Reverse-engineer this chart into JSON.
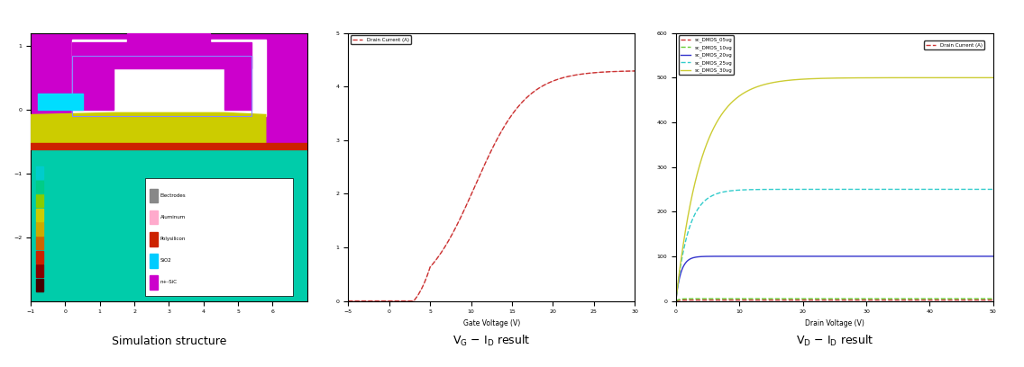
{
  "panel1_label": "Simulation structure",
  "panel2_label": "V_G – I_D result",
  "panel3_label": "V_D – I_D result",
  "vg_id": {
    "color": "#cc3333",
    "xlabel": "Gate Voltage (V)",
    "legend": "Drain Current (A)",
    "xlim": [
      -5,
      30
    ],
    "ylim": [
      0,
      5
    ],
    "yticks": [
      0,
      1,
      2,
      3,
      4,
      5
    ]
  },
  "vd_id": {
    "curves": [
      {
        "label": "sc_DMOS_05vg",
        "color": "#cc3333",
        "id_sat": 2.0
      },
      {
        "label": "sc_DMOS_10vg",
        "color": "#66cc33",
        "id_sat": 5.0
      },
      {
        "label": "sc_DMOS_20vg",
        "color": "#3333cc",
        "id_sat": 100.0
      },
      {
        "label": "sc_DMOS_25vg",
        "color": "#33cccc",
        "id_sat": 250.0
      },
      {
        "label": "sc_DMOS_30vg",
        "color": "#cccc33",
        "id_sat": 500.0
      }
    ],
    "xlabel": "Drain Voltage (V)",
    "legend": "Drain Current (A)",
    "xlim": [
      0,
      50
    ],
    "ylim": [
      0,
      600
    ],
    "yticks": [
      0,
      100,
      200,
      300,
      400,
      500,
      600
    ]
  }
}
